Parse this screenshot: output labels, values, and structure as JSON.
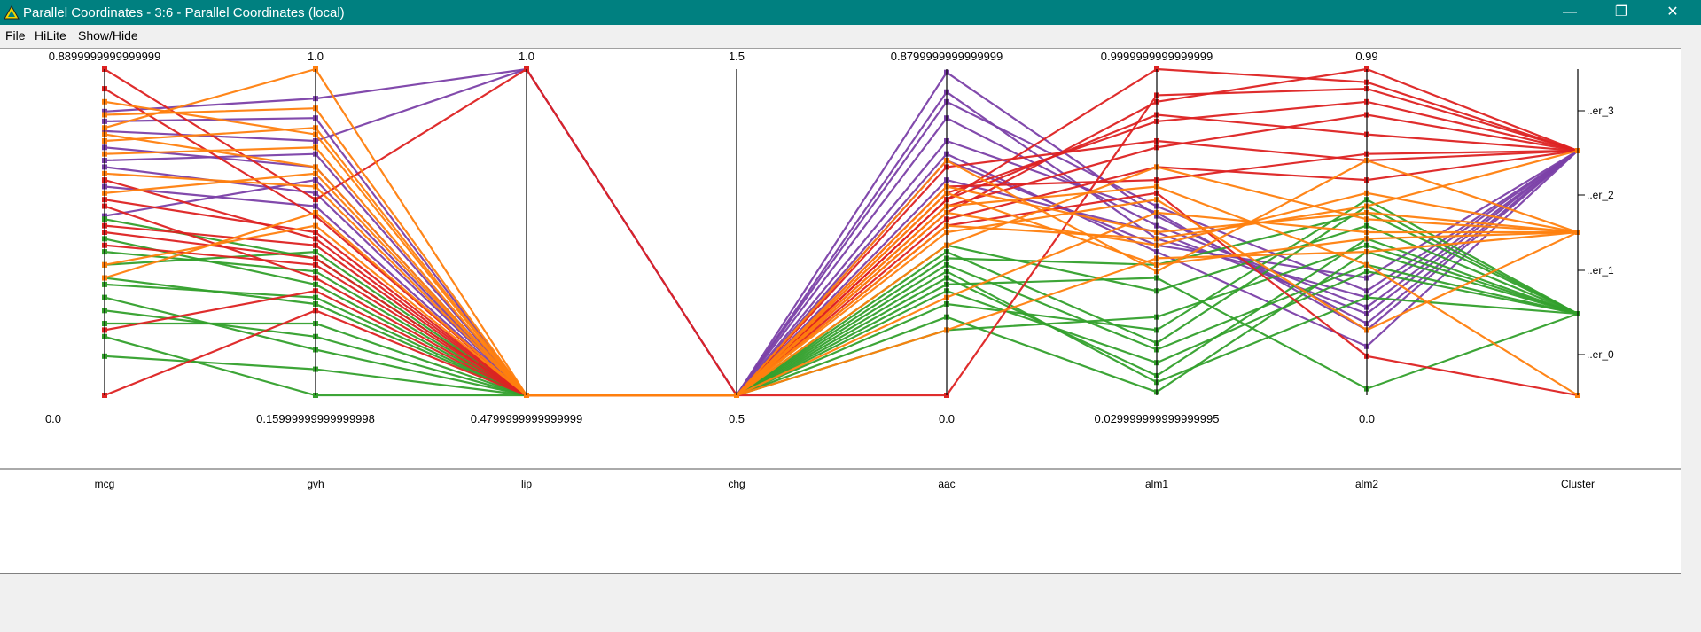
{
  "window": {
    "title": "Parallel Coordinates - 3:6 - Parallel Coordinates (local)",
    "minimize_glyph": "—",
    "restore_glyph": "❐",
    "close_glyph": "✕"
  },
  "menu": [
    "File",
    "HiLite",
    "Show/Hide"
  ],
  "colors": {
    "titlebar": "#008080",
    "cluster_0": "#dd2222",
    "cluster_1": "#7b40a8",
    "cluster_2": "#33a02c",
    "cluster_3": "#ff7f0e"
  },
  "chart_data": {
    "type": "parallel_coordinates",
    "axes": [
      {
        "name": "mcg",
        "max_label": "0.8899999999999999",
        "min_label": "0.0"
      },
      {
        "name": "gvh",
        "max_label": "1.0",
        "min_label": "0.15999999999999998"
      },
      {
        "name": "lip",
        "max_label": "1.0",
        "min_label": "0.4799999999999999"
      },
      {
        "name": "chg",
        "max_label": "1.5",
        "min_label": "0.5"
      },
      {
        "name": "aac",
        "max_label": "0.8799999999999999",
        "min_label": "0.0"
      },
      {
        "name": "alm1",
        "max_label": "0.9999999999999999",
        "min_label": "0.029999999999999995"
      },
      {
        "name": "alm2",
        "max_label": "0.99",
        "min_label": "0.0"
      },
      {
        "name": "Cluster",
        "max_label": "",
        "min_label": ""
      }
    ],
    "cluster_categories": [
      "..er_3",
      "..er_2",
      "..er_1",
      "..er_0"
    ],
    "line_groups": [
      {
        "color": "#7b40a8",
        "lines": [
          [
            0.87,
            0.91,
            1.0,
            0.0,
            0.99,
            0.55,
            0.22,
            0.75
          ],
          [
            0.81,
            0.78,
            1.0,
            0.0,
            0.93,
            0.48,
            0.3,
            0.75
          ],
          [
            0.76,
            0.7,
            0.0,
            0.0,
            0.85,
            0.52,
            0.27,
            0.75
          ],
          [
            0.7,
            0.62,
            0.0,
            0.0,
            0.74,
            0.44,
            0.15,
            0.75
          ],
          [
            0.84,
            0.85,
            0.0,
            0.0,
            0.78,
            0.56,
            0.2,
            0.75
          ],
          [
            0.64,
            0.58,
            0.0,
            0.0,
            0.66,
            0.5,
            0.25,
            0.75
          ],
          [
            0.55,
            0.66,
            0.0,
            0.0,
            0.9,
            0.58,
            0.32,
            0.75
          ],
          [
            0.72,
            0.74,
            0.0,
            0.0,
            0.72,
            0.46,
            0.36,
            0.75
          ]
        ]
      },
      {
        "color": "#33a02c",
        "lines": [
          [
            0.44,
            0.38,
            0.0,
            0.0,
            0.4,
            0.14,
            0.4,
            0.25
          ],
          [
            0.36,
            0.28,
            0.0,
            0.0,
            0.36,
            0.06,
            0.48,
            0.25
          ],
          [
            0.3,
            0.14,
            0.0,
            0.0,
            0.28,
            0.2,
            0.6,
            0.25
          ],
          [
            0.22,
            0.22,
            0.0,
            0.0,
            0.24,
            0.01,
            0.44,
            0.25
          ],
          [
            0.48,
            0.34,
            0.0,
            0.0,
            0.46,
            0.32,
            0.52,
            0.25
          ],
          [
            0.12,
            0.08,
            0.0,
            0.0,
            0.32,
            0.1,
            0.38,
            0.25
          ],
          [
            0.4,
            0.44,
            0.0,
            0.0,
            0.42,
            0.4,
            0.56,
            0.25
          ],
          [
            0.26,
            0.18,
            0.0,
            0.0,
            0.2,
            0.24,
            0.46,
            0.25
          ],
          [
            0.54,
            0.42,
            0.0,
            0.0,
            0.34,
            0.36,
            0.02,
            0.25
          ],
          [
            0.34,
            0.3,
            0.0,
            0.0,
            0.44,
            0.16,
            0.58,
            0.25
          ],
          [
            0.18,
            0.0,
            0.0,
            0.0,
            0.38,
            0.04,
            0.3,
            0.25
          ]
        ]
      },
      {
        "color": "#dd2222",
        "lines": [
          [
            1.0,
            0.6,
            1.0,
            0.0,
            0.0,
            0.92,
            0.94,
            0.75
          ],
          [
            0.94,
            0.55,
            0.0,
            0.0,
            0.62,
            0.84,
            0.9,
            0.75
          ],
          [
            0.6,
            0.5,
            0.0,
            0.0,
            0.7,
            0.78,
            0.72,
            0.75
          ],
          [
            0.52,
            0.46,
            0.0,
            0.0,
            0.64,
            0.66,
            0.74,
            0.75
          ],
          [
            0.46,
            0.4,
            0.0,
            0.0,
            0.58,
            0.76,
            0.86,
            0.75
          ],
          [
            0.58,
            0.36,
            0.0,
            0.0,
            0.6,
            0.86,
            0.8,
            0.75
          ],
          [
            0.2,
            0.32,
            0.0,
            0.0,
            0.54,
            0.7,
            0.66,
            0.75
          ],
          [
            0.0,
            0.26,
            0.0,
            0.0,
            0.56,
            0.9,
            1.0,
            0.75
          ],
          [
            0.66,
            0.48,
            0.0,
            0.0,
            0.52,
            0.62,
            0.12,
            0.0
          ],
          [
            0.5,
            0.42,
            0.0,
            0.0,
            0.6,
            1.0,
            0.96,
            0.75
          ]
        ]
      },
      {
        "color": "#ff7f0e",
        "lines": [
          [
            0.82,
            1.0,
            0.0,
            0.0,
            0.64,
            0.5,
            0.56,
            0.5
          ],
          [
            0.86,
            0.88,
            0.0,
            0.0,
            0.62,
            0.4,
            0.48,
            0.5
          ],
          [
            0.78,
            0.82,
            0.0,
            0.0,
            0.56,
            0.46,
            0.62,
            0.5
          ],
          [
            0.74,
            0.76,
            0.0,
            0.0,
            0.5,
            0.6,
            0.2,
            0.5
          ],
          [
            0.8,
            0.7,
            0.0,
            0.0,
            0.46,
            0.7,
            0.54,
            0.5
          ],
          [
            0.68,
            0.64,
            0.0,
            0.0,
            0.2,
            0.42,
            0.44,
            0.5
          ],
          [
            0.4,
            0.52,
            0.0,
            0.0,
            0.3,
            0.56,
            0.5,
            0.5
          ],
          [
            0.9,
            0.8,
            0.0,
            0.0,
            0.72,
            0.38,
            0.72,
            0.5
          ],
          [
            0.62,
            0.68,
            0.0,
            0.0,
            0.58,
            0.64,
            0.4,
            0.0
          ],
          [
            0.36,
            0.56,
            0.0,
            0.0,
            0.52,
            0.48,
            0.58,
            0.75
          ]
        ]
      }
    ]
  }
}
